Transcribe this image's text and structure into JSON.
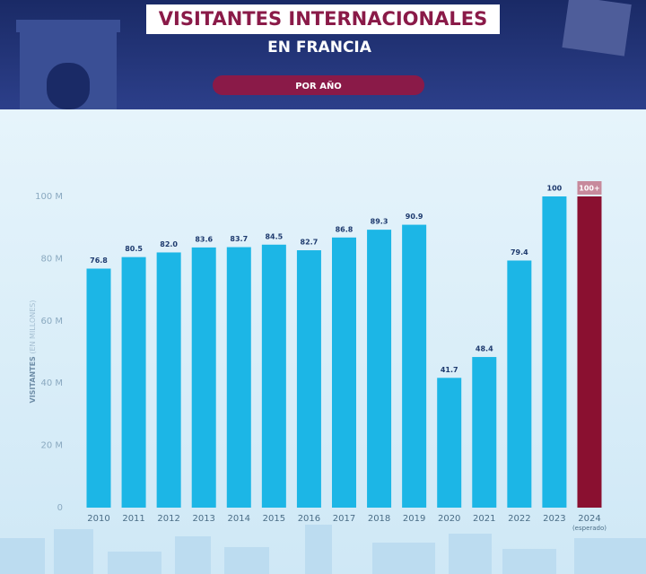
{
  "header": {
    "title": "VISITANTES INTERNACIONALES",
    "subtitle": "EN FRANCIA",
    "badge": "POR AÑO"
  },
  "chart_data": {
    "type": "bar",
    "categories": [
      "2010",
      "2011",
      "2012",
      "2013",
      "2014",
      "2015",
      "2016",
      "2017",
      "2018",
      "2019",
      "2020",
      "2021",
      "2022",
      "2023",
      "2024"
    ],
    "category_note": "(esperado)",
    "values": [
      76.8,
      80.5,
      82.0,
      83.6,
      83.7,
      84.5,
      82.7,
      86.8,
      89.3,
      90.9,
      41.7,
      48.4,
      79.4,
      100,
      100
    ],
    "value_labels": [
      "76.8",
      "80.5",
      "82.0",
      "83.6",
      "83.7",
      "84.5",
      "82.7",
      "86.8",
      "89.3",
      "90.9",
      "41.7",
      "48.4",
      "79.4",
      "100",
      "100+"
    ],
    "colors": [
      "#1cb6e6",
      "#1cb6e6",
      "#1cb6e6",
      "#1cb6e6",
      "#1cb6e6",
      "#1cb6e6",
      "#1cb6e6",
      "#1cb6e6",
      "#1cb6e6",
      "#1cb6e6",
      "#1cb6e6",
      "#1cb6e6",
      "#1cb6e6",
      "#1cb6e6",
      "#8a1030"
    ],
    "ylabel": "VISITANTES",
    "ylabel_note": "(EN MILLONES)",
    "ylim": [
      0,
      100
    ],
    "yticks": [
      0,
      {
        "value": 20,
        "label": "20 M"
      },
      {
        "value": 40,
        "label": "40 M"
      },
      {
        "value": 60,
        "label": "60 M"
      },
      {
        "value": 80,
        "label": "80 M"
      },
      {
        "value": 100,
        "label": "100 M"
      }
    ]
  }
}
